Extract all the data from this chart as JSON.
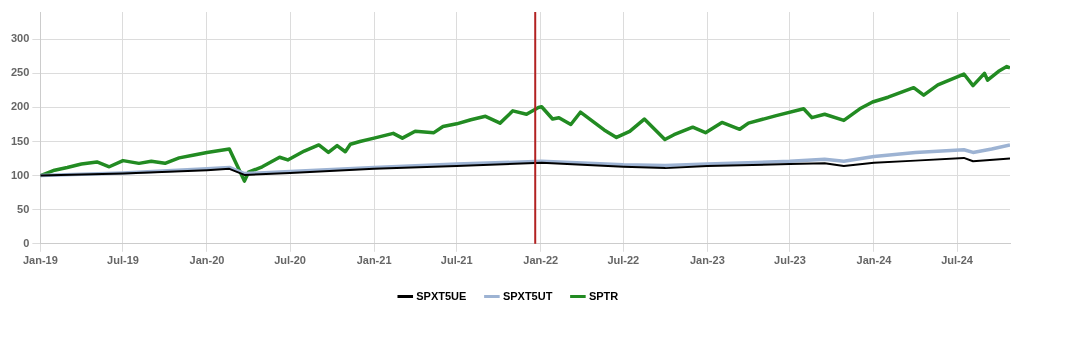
{
  "chart_data": {
    "type": "line",
    "xlim": [
      "2019-01-01",
      "2024-10-25"
    ],
    "ylim": [
      0,
      340
    ],
    "xticks": [
      {
        "value": "2019-01-01",
        "label": "Jan-19"
      },
      {
        "value": "2019-07-01",
        "label": "Jul-19"
      },
      {
        "value": "2020-01-01",
        "label": "Jan-20"
      },
      {
        "value": "2020-07-01",
        "label": "Jul-20"
      },
      {
        "value": "2021-01-01",
        "label": "Jan-21"
      },
      {
        "value": "2021-07-01",
        "label": "Jul-21"
      },
      {
        "value": "2022-01-01",
        "label": "Jan-22"
      },
      {
        "value": "2022-07-01",
        "label": "Jul-22"
      },
      {
        "value": "2023-01-01",
        "label": "Jan-23"
      },
      {
        "value": "2023-07-01",
        "label": "Jul-23"
      },
      {
        "value": "2024-01-01",
        "label": "Jan-24"
      },
      {
        "value": "2024-07-01",
        "label": "Jul-24"
      }
    ],
    "yticks": [
      0,
      50,
      100,
      150,
      200,
      250,
      300
    ],
    "grid": true,
    "legend": "bottom",
    "marker": "none",
    "line_style": "solid",
    "ref_lines": [
      {
        "axis": "x",
        "value": "2021-12-20",
        "color": "#b22222"
      }
    ],
    "series": [
      {
        "name": "SPXT5UE",
        "color": "#000000",
        "x": [
          "2019-01-01",
          "2019-07-01",
          "2020-01-01",
          "2020-02-19",
          "2020-03-23",
          "2020-07-01",
          "2021-01-01",
          "2021-07-01",
          "2022-01-03",
          "2022-07-01",
          "2022-10-01",
          "2023-01-01",
          "2023-07-01",
          "2023-09-15",
          "2023-10-27",
          "2024-01-01",
          "2024-04-01",
          "2024-07-16",
          "2024-08-05",
          "2024-10-25"
        ],
        "values": [
          100,
          103,
          108,
          110,
          101,
          104,
          110,
          114,
          119,
          113,
          111,
          114,
          117,
          118,
          114,
          119,
          122,
          126,
          121,
          125
        ]
      },
      {
        "name": "SPXT5UT",
        "color": "#9db3d3",
        "x": [
          "2019-01-01",
          "2019-07-01",
          "2020-01-01",
          "2020-02-19",
          "2020-03-23",
          "2020-07-01",
          "2021-01-01",
          "2021-07-01",
          "2022-01-03",
          "2022-07-01",
          "2022-10-01",
          "2023-01-01",
          "2023-07-01",
          "2023-09-15",
          "2023-10-27",
          "2024-01-01",
          "2024-04-01",
          "2024-07-16",
          "2024-08-05",
          "2024-09-15",
          "2024-10-25"
        ],
        "values": [
          100,
          104,
          110,
          112,
          103,
          106,
          112,
          117,
          121,
          116,
          115,
          117,
          121,
          124,
          121,
          128,
          134,
          138,
          134,
          139,
          145
        ]
      },
      {
        "name": "SPTR",
        "color": "#228b22",
        "x": [
          "2019-01-01",
          "2019-02-01",
          "2019-03-01",
          "2019-04-01",
          "2019-05-05",
          "2019-06-01",
          "2019-07-01",
          "2019-08-05",
          "2019-09-01",
          "2019-10-01",
          "2019-11-01",
          "2019-12-01",
          "2020-01-01",
          "2020-02-19",
          "2020-03-23",
          "2020-04-01",
          "2020-05-01",
          "2020-06-08",
          "2020-06-26",
          "2020-08-01",
          "2020-09-02",
          "2020-09-23",
          "2020-10-12",
          "2020-10-30",
          "2020-11-10",
          "2020-12-01",
          "2021-01-01",
          "2021-02-12",
          "2021-03-04",
          "2021-04-01",
          "2021-05-12",
          "2021-06-01",
          "2021-07-01",
          "2021-08-01",
          "2021-09-02",
          "2021-10-04",
          "2021-11-01",
          "2021-12-01",
          "2021-12-27",
          "2022-01-03",
          "2022-01-27",
          "2022-02-10",
          "2022-03-08",
          "2022-03-29",
          "2022-05-20",
          "2022-06-16",
          "2022-07-15",
          "2022-08-16",
          "2022-09-30",
          "2022-10-20",
          "2022-11-30",
          "2022-12-28",
          "2023-02-02",
          "2023-03-13",
          "2023-04-01",
          "2023-06-01",
          "2023-07-31",
          "2023-08-18",
          "2023-09-15",
          "2023-10-27",
          "2023-12-01",
          "2023-12-29",
          "2024-02-01",
          "2024-03-28",
          "2024-04-19",
          "2024-05-20",
          "2024-07-16",
          "2024-08-05",
          "2024-08-30",
          "2024-09-06",
          "2024-09-30",
          "2024-10-18",
          "2024-10-25"
        ],
        "values": [
          100,
          108,
          112,
          117,
          120,
          113,
          122,
          118,
          121,
          118,
          126,
          130,
          134,
          139,
          92,
          105,
          113,
          127,
          123,
          136,
          145,
          134,
          144,
          135,
          146,
          150,
          155,
          162,
          155,
          165,
          163,
          172,
          176,
          182,
          187,
          177,
          195,
          190,
          200,
          201,
          183,
          185,
          175,
          193,
          167,
          156,
          165,
          183,
          153,
          160,
          171,
          163,
          178,
          168,
          177,
          188,
          198,
          185,
          190,
          181,
          198,
          208,
          215,
          229,
          218,
          233,
          249,
          232,
          250,
          240,
          253,
          260,
          258
        ]
      }
    ]
  }
}
